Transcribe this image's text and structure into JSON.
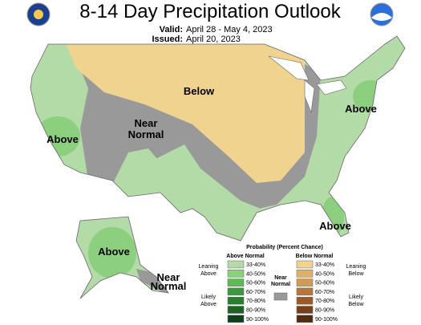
{
  "header": {
    "title": "8-14 Day Precipitation Outlook",
    "valid_label": "Valid:",
    "valid": "April 28 - May 4, 2023",
    "issued_label": "Issued:",
    "issued": "April 20, 2023"
  },
  "region_labels": [
    [
      "Below"
    ],
    [
      "Near",
      "Normal"
    ],
    [
      "Above"
    ],
    [
      "Above"
    ],
    [
      "Above"
    ],
    [
      "Above"
    ],
    [
      "Near",
      "Normal"
    ]
  ],
  "legend": {
    "title": "Probability (Percent Chance)",
    "above_header": "Above Normal",
    "below_header": "Below Normal",
    "near": [
      "Near",
      "Normal"
    ],
    "leaning_above": [
      "Leaning",
      "Above"
    ],
    "likely_above": [
      "Likely",
      "Above"
    ],
    "leaning_below": [
      "Leaning",
      "Below"
    ],
    "likely_below": [
      "Likely",
      "Below"
    ],
    "above_ranges": [
      "33-40%",
      "40-50%",
      "50-60%",
      "60-70%",
      "70-80%",
      "80-90%",
      "90-100%"
    ],
    "below_ranges": [
      "33-40%",
      "40-50%",
      "50-60%",
      "60-70%",
      "70-80%",
      "80-90%",
      "90-100%"
    ]
  }
}
